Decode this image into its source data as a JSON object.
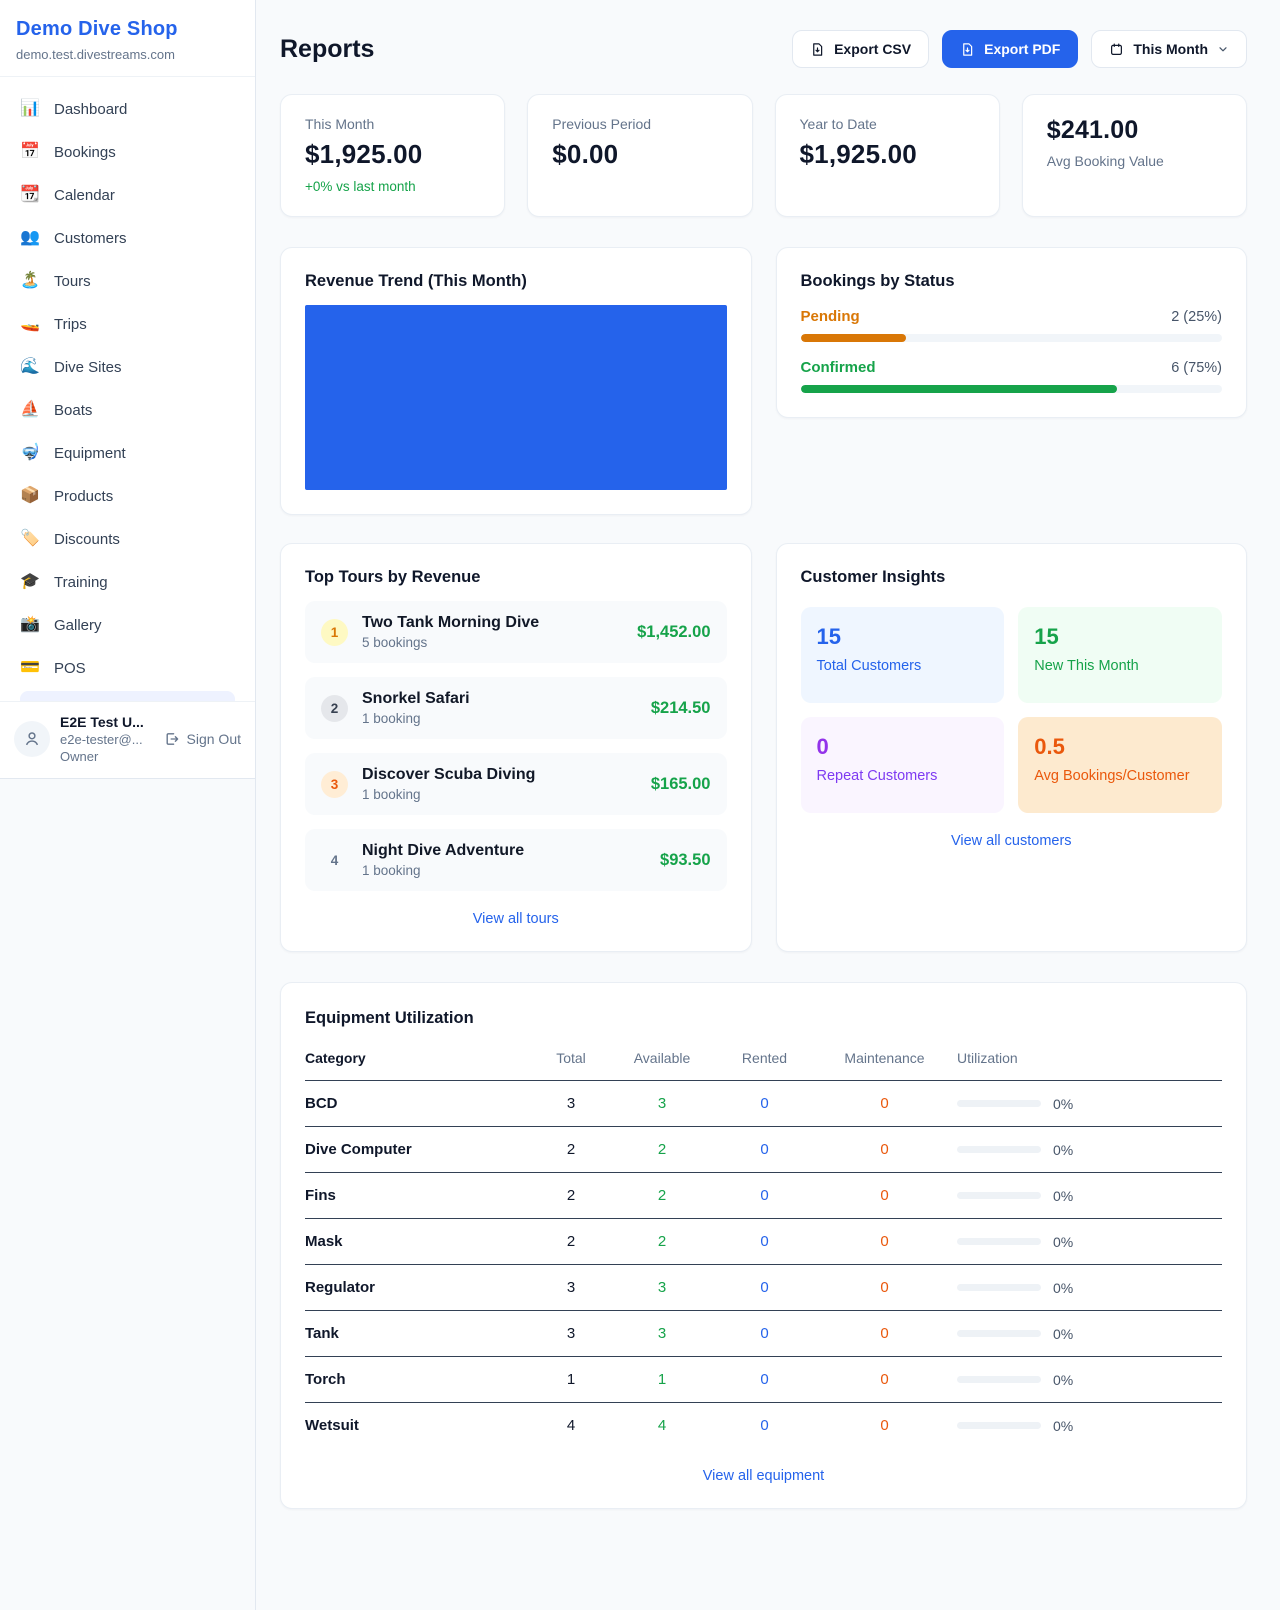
{
  "colors": {
    "accent_blue": "#2563eb",
    "green": "#16a34a",
    "orange_pending": "#d97706",
    "orange_deep": "#ea580c",
    "purple": "#9333ea",
    "page_bg": "#f8fafc"
  },
  "sidebar": {
    "shop_name": "Demo Dive Shop",
    "shop_domain": "demo.test.divestreams.com",
    "items": [
      {
        "label": "Dashboard",
        "icon": "📊"
      },
      {
        "label": "Bookings",
        "icon": "📅"
      },
      {
        "label": "Calendar",
        "icon": "📆"
      },
      {
        "label": "Customers",
        "icon": "👥"
      },
      {
        "label": "Tours",
        "icon": "🏝️"
      },
      {
        "label": "Trips",
        "icon": "🚤"
      },
      {
        "label": "Dive Sites",
        "icon": "🌊"
      },
      {
        "label": "Boats",
        "icon": "⛵"
      },
      {
        "label": "Equipment",
        "icon": "🤿"
      },
      {
        "label": "Products",
        "icon": "📦"
      },
      {
        "label": "Discounts",
        "icon": "🏷️"
      },
      {
        "label": "Training",
        "icon": "🎓"
      },
      {
        "label": "Gallery",
        "icon": "📸"
      },
      {
        "label": "POS",
        "icon": "💳"
      }
    ],
    "user": {
      "name": "E2E Test U...",
      "email": "e2e-tester@...",
      "role": "Owner",
      "sign_out_label": "Sign Out"
    }
  },
  "header": {
    "title": "Reports",
    "export_csv_label": "Export CSV",
    "export_pdf_label": "Export PDF",
    "period_label": "This Month"
  },
  "stats": {
    "this_month": {
      "label": "This Month",
      "value": "$1,925.00",
      "delta": "+0% vs last month"
    },
    "previous_period": {
      "label": "Previous Period",
      "value": "$0.00"
    },
    "year_to_date": {
      "label": "Year to Date",
      "value": "$1,925.00"
    },
    "avg_booking": {
      "label": "Avg Booking Value",
      "value": "$241.00"
    }
  },
  "revenue_trend": {
    "title": "Revenue Trend (This Month)"
  },
  "bookings_by_status": {
    "title": "Bookings by Status",
    "rows": [
      {
        "label": "Pending",
        "count_text": "2 (25%)",
        "pct": 25
      },
      {
        "label": "Confirmed",
        "count_text": "6 (75%)",
        "pct": 75
      }
    ]
  },
  "top_tours": {
    "title": "Top Tours by Revenue",
    "rows": [
      {
        "rank": "1",
        "name": "Two Tank Morning Dive",
        "bookings": "5 bookings",
        "value": "$1,452.00"
      },
      {
        "rank": "2",
        "name": "Snorkel Safari",
        "bookings": "1 booking",
        "value": "$214.50"
      },
      {
        "rank": "3",
        "name": "Discover Scuba Diving",
        "bookings": "1 booking",
        "value": "$165.00"
      },
      {
        "rank": "4",
        "name": "Night Dive Adventure",
        "bookings": "1 booking",
        "value": "$93.50"
      }
    ],
    "view_all_label": "View all tours"
  },
  "customer_insights": {
    "title": "Customer Insights",
    "tiles": [
      {
        "value": "15",
        "label": "Total Customers"
      },
      {
        "value": "15",
        "label": "New This Month"
      },
      {
        "value": "0",
        "label": "Repeat Customers"
      },
      {
        "value": "0.5",
        "label": "Avg Bookings/Customer"
      }
    ],
    "view_all_label": "View all customers"
  },
  "equipment": {
    "title": "Equipment Utilization",
    "columns": {
      "category": "Category",
      "total": "Total",
      "available": "Available",
      "rented": "Rented",
      "maintenance": "Maintenance",
      "utilization": "Utilization"
    },
    "rows": [
      {
        "category": "BCD",
        "total": "3",
        "available": "3",
        "rented": "0",
        "maintenance": "0",
        "utilization": "0%",
        "utilization_pct": 0
      },
      {
        "category": "Dive Computer",
        "total": "2",
        "available": "2",
        "rented": "0",
        "maintenance": "0",
        "utilization": "0%",
        "utilization_pct": 0
      },
      {
        "category": "Fins",
        "total": "2",
        "available": "2",
        "rented": "0",
        "maintenance": "0",
        "utilization": "0%",
        "utilization_pct": 0
      },
      {
        "category": "Mask",
        "total": "2",
        "available": "2",
        "rented": "0",
        "maintenance": "0",
        "utilization": "0%",
        "utilization_pct": 0
      },
      {
        "category": "Regulator",
        "total": "3",
        "available": "3",
        "rented": "0",
        "maintenance": "0",
        "utilization": "0%",
        "utilization_pct": 0
      },
      {
        "category": "Tank",
        "total": "3",
        "available": "3",
        "rented": "0",
        "maintenance": "0",
        "utilization": "0%",
        "utilization_pct": 0
      },
      {
        "category": "Torch",
        "total": "1",
        "available": "1",
        "rented": "0",
        "maintenance": "0",
        "utilization": "0%",
        "utilization_pct": 0
      },
      {
        "category": "Wetsuit",
        "total": "4",
        "available": "4",
        "rented": "0",
        "maintenance": "0",
        "utilization": "0%",
        "utilization_pct": 0
      }
    ],
    "view_all_label": "View all equipment"
  }
}
